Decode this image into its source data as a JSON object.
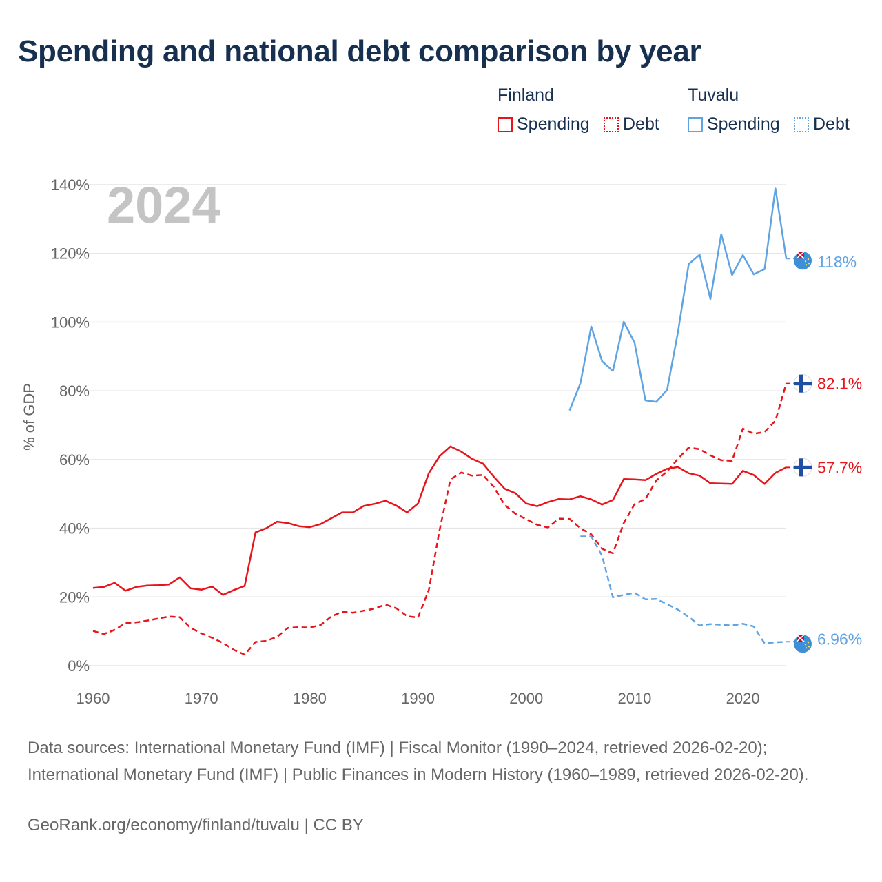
{
  "title": "Spending and national debt comparison by year",
  "legend": {
    "groups": [
      {
        "country": "Finland",
        "items": [
          {
            "label": "Spending",
            "style": "solid",
            "color": "#e8141b"
          },
          {
            "label": "Debt",
            "style": "dotted",
            "color": "#e8141b"
          }
        ]
      },
      {
        "country": "Tuvalu",
        "items": [
          {
            "label": "Spending",
            "style": "solid",
            "color": "#5fa3e3"
          },
          {
            "label": "Debt",
            "style": "dotted",
            "color": "#5fa3e3"
          }
        ]
      }
    ]
  },
  "chart_data": {
    "type": "line",
    "year_label": "2024",
    "ylabel": "% of GDP",
    "xlim": [
      1960,
      2024
    ],
    "ylim": [
      0,
      140
    ],
    "x_ticks": [
      "1960",
      "1970",
      "1980",
      "1990",
      "2000",
      "2010",
      "2020"
    ],
    "y_ticks": [
      "0%",
      "20%",
      "40%",
      "60%",
      "80%",
      "100%",
      "120%",
      "140%"
    ],
    "grid": true,
    "series": [
      {
        "name": "Finland Spending",
        "country": "Finland",
        "color": "#e8141b",
        "dash": "solid",
        "end_label": "57.7%",
        "flag": "finland",
        "points": [
          [
            1960,
            22.6
          ],
          [
            1961,
            22.9
          ],
          [
            1962,
            24.1
          ],
          [
            1963,
            21.8
          ],
          [
            1964,
            22.9
          ],
          [
            1965,
            23.3
          ],
          [
            1966,
            23.4
          ],
          [
            1967,
            23.6
          ],
          [
            1968,
            25.7
          ],
          [
            1969,
            22.5
          ],
          [
            1970,
            22.1
          ],
          [
            1971,
            23.0
          ],
          [
            1972,
            20.6
          ],
          [
            1973,
            22.0
          ],
          [
            1974,
            23.2
          ],
          [
            1975,
            38.8
          ],
          [
            1976,
            40.0
          ],
          [
            1977,
            41.9
          ],
          [
            1978,
            41.5
          ],
          [
            1979,
            40.6
          ],
          [
            1980,
            40.3
          ],
          [
            1981,
            41.2
          ],
          [
            1982,
            42.9
          ],
          [
            1983,
            44.6
          ],
          [
            1984,
            44.6
          ],
          [
            1985,
            46.5
          ],
          [
            1986,
            47.1
          ],
          [
            1987,
            48.0
          ],
          [
            1988,
            46.6
          ],
          [
            1989,
            44.6
          ],
          [
            1990,
            47.2
          ],
          [
            1991,
            56.0
          ],
          [
            1992,
            61.0
          ],
          [
            1993,
            63.8
          ],
          [
            1994,
            62.3
          ],
          [
            1995,
            60.2
          ],
          [
            1996,
            58.8
          ],
          [
            1997,
            55.0
          ],
          [
            1998,
            51.5
          ],
          [
            1999,
            50.2
          ],
          [
            2000,
            47.2
          ],
          [
            2001,
            46.4
          ],
          [
            2002,
            47.6
          ],
          [
            2003,
            48.5
          ],
          [
            2004,
            48.4
          ],
          [
            2005,
            49.3
          ],
          [
            2006,
            48.4
          ],
          [
            2007,
            46.9
          ],
          [
            2008,
            48.2
          ],
          [
            2009,
            54.3
          ],
          [
            2010,
            54.2
          ],
          [
            2011,
            54.0
          ],
          [
            2012,
            55.8
          ],
          [
            2013,
            57.3
          ],
          [
            2014,
            57.8
          ],
          [
            2015,
            56.0
          ],
          [
            2016,
            55.3
          ],
          [
            2017,
            53.1
          ],
          [
            2018,
            53.0
          ],
          [
            2019,
            52.9
          ],
          [
            2020,
            56.7
          ],
          [
            2021,
            55.5
          ],
          [
            2022,
            52.9
          ],
          [
            2023,
            56.1
          ],
          [
            2024,
            57.7
          ]
        ]
      },
      {
        "name": "Finland Debt",
        "country": "Finland",
        "color": "#e8141b",
        "dash": "dashed",
        "end_label": "82.1%",
        "flag": "finland",
        "points": [
          [
            1960,
            10.1
          ],
          [
            1961,
            9.2
          ],
          [
            1962,
            10.4
          ],
          [
            1963,
            12.4
          ],
          [
            1964,
            12.6
          ],
          [
            1965,
            13.1
          ],
          [
            1966,
            13.7
          ],
          [
            1967,
            14.3
          ],
          [
            1968,
            14.1
          ],
          [
            1969,
            11.0
          ],
          [
            1970,
            9.4
          ],
          [
            1971,
            8.1
          ],
          [
            1972,
            6.6
          ],
          [
            1973,
            4.6
          ],
          [
            1974,
            3.2
          ],
          [
            1975,
            6.9
          ],
          [
            1976,
            7.2
          ],
          [
            1977,
            8.4
          ],
          [
            1978,
            11.0
          ],
          [
            1979,
            11.2
          ],
          [
            1980,
            11.1
          ],
          [
            1981,
            11.8
          ],
          [
            1982,
            14.3
          ],
          [
            1983,
            15.7
          ],
          [
            1984,
            15.4
          ],
          [
            1985,
            16.0
          ],
          [
            1986,
            16.6
          ],
          [
            1987,
            17.8
          ],
          [
            1988,
            16.7
          ],
          [
            1989,
            14.4
          ],
          [
            1990,
            14.0
          ],
          [
            1991,
            22.0
          ],
          [
            1992,
            39.5
          ],
          [
            1993,
            54.2
          ],
          [
            1994,
            56.2
          ],
          [
            1995,
            55.3
          ],
          [
            1996,
            55.5
          ],
          [
            1997,
            52.0
          ],
          [
            1998,
            46.8
          ],
          [
            1999,
            44.2
          ],
          [
            2000,
            42.6
          ],
          [
            2001,
            41.0
          ],
          [
            2002,
            40.2
          ],
          [
            2003,
            42.8
          ],
          [
            2004,
            42.7
          ],
          [
            2005,
            40.0
          ],
          [
            2006,
            38.2
          ],
          [
            2007,
            34.0
          ],
          [
            2008,
            32.7
          ],
          [
            2009,
            41.5
          ],
          [
            2010,
            47.0
          ],
          [
            2011,
            48.5
          ],
          [
            2012,
            53.9
          ],
          [
            2013,
            56.5
          ],
          [
            2014,
            60.2
          ],
          [
            2015,
            63.5
          ],
          [
            2016,
            63.0
          ],
          [
            2017,
            61.2
          ],
          [
            2018,
            59.8
          ],
          [
            2019,
            59.6
          ],
          [
            2020,
            69.0
          ],
          [
            2021,
            67.5
          ],
          [
            2022,
            68.0
          ],
          [
            2023,
            71.3
          ],
          [
            2024,
            82.1
          ]
        ]
      },
      {
        "name": "Tuvalu Spending",
        "country": "Tuvalu",
        "color": "#5fa3e3",
        "dash": "solid",
        "end_label": "118%",
        "flag": "tuvalu",
        "points": [
          [
            2004,
            74.3
          ],
          [
            2005,
            82.2
          ],
          [
            2006,
            98.7
          ],
          [
            2007,
            88.6
          ],
          [
            2008,
            85.8
          ],
          [
            2009,
            100.1
          ],
          [
            2010,
            94.0
          ],
          [
            2011,
            77.2
          ],
          [
            2012,
            76.8
          ],
          [
            2013,
            80.2
          ],
          [
            2014,
            97.0
          ],
          [
            2015,
            116.9
          ],
          [
            2016,
            119.6
          ],
          [
            2017,
            106.7
          ],
          [
            2018,
            125.6
          ],
          [
            2019,
            113.7
          ],
          [
            2020,
            119.5
          ],
          [
            2021,
            113.9
          ],
          [
            2022,
            115.4
          ],
          [
            2023,
            138.9
          ],
          [
            2024,
            118.5
          ]
        ]
      },
      {
        "name": "Tuvalu Debt",
        "country": "Tuvalu",
        "color": "#5fa3e3",
        "dash": "dashed",
        "end_label": "6.96%",
        "flag": "tuvalu",
        "points": [
          [
            2005,
            37.6
          ],
          [
            2006,
            37.6
          ],
          [
            2007,
            32.0
          ],
          [
            2008,
            19.9
          ],
          [
            2009,
            20.6
          ],
          [
            2010,
            21.2
          ],
          [
            2011,
            19.3
          ],
          [
            2012,
            19.4
          ],
          [
            2013,
            17.9
          ],
          [
            2014,
            16.3
          ],
          [
            2015,
            14.2
          ],
          [
            2016,
            11.7
          ],
          [
            2017,
            12.1
          ],
          [
            2018,
            11.9
          ],
          [
            2019,
            11.7
          ],
          [
            2020,
            12.2
          ],
          [
            2021,
            11.4
          ],
          [
            2022,
            6.5
          ],
          [
            2023,
            6.8
          ],
          [
            2024,
            6.96
          ]
        ]
      }
    ]
  },
  "sources": "Data sources: International Monetary Fund (IMF) | Fiscal Monitor (1990–2024, retrieved 2026-02-20); International Monetary Fund (IMF) | Public Finances in Modern History (1960–1989, retrieved 2026-02-20).",
  "credit": "GeoRank.org/economy/finland/tuvalu | CC BY"
}
